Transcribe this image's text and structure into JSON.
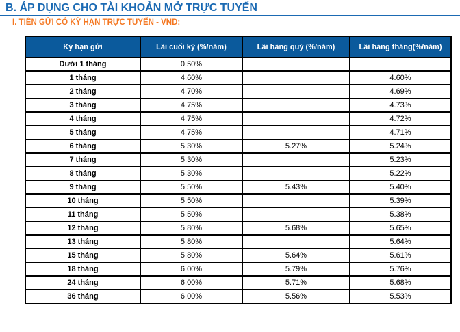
{
  "page": {
    "title": "B. ÁP DỤNG CHO TÀI KHOẢN MỞ TRỰC TUYẾN",
    "subtitle": "I. TIỀN GỬI CÓ KỲ HẠN TRỰC TUYẾN - VND:"
  },
  "colors": {
    "title_blue": "#1B6AB3",
    "subtitle_orange": "#F47721",
    "header_bg": "#0B5A9C",
    "header_text": "#FFFFFF",
    "border_black": "#000000"
  },
  "table": {
    "headers": [
      "Kỳ hạn gửi",
      "Lãi cuối kỳ (%/năm)",
      "Lãi hàng quý (%/năm)",
      "Lãi hàng tháng(%/năm)"
    ],
    "rows": [
      [
        "Dưới 1 tháng",
        "0.50%",
        "",
        ""
      ],
      [
        "1 tháng",
        "4.60%",
        "",
        "4.60%"
      ],
      [
        "2 tháng",
        "4.70%",
        "",
        "4.69%"
      ],
      [
        "3 tháng",
        "4.75%",
        "",
        "4.73%"
      ],
      [
        "4 tháng",
        "4.75%",
        "",
        "4.72%"
      ],
      [
        "5 tháng",
        "4.75%",
        "",
        "4.71%"
      ],
      [
        "6 tháng",
        "5.30%",
        "5.27%",
        "5.24%"
      ],
      [
        "7 tháng",
        "5.30%",
        "",
        "5.23%"
      ],
      [
        "8 tháng",
        "5.30%",
        "",
        "5.22%"
      ],
      [
        "9 tháng",
        "5.50%",
        "5.43%",
        "5.40%"
      ],
      [
        "10 tháng",
        "5.50%",
        "",
        "5.39%"
      ],
      [
        "11 tháng",
        "5.50%",
        "",
        "5.38%"
      ],
      [
        "12 tháng",
        "5.80%",
        "5.68%",
        "5.65%"
      ],
      [
        "13 tháng",
        "5.80%",
        "",
        "5.64%"
      ],
      [
        "15 tháng",
        "5.80%",
        "5.64%",
        "5.61%"
      ],
      [
        "18 tháng",
        "6.00%",
        "5.79%",
        "5.76%"
      ],
      [
        "24 tháng",
        "6.00%",
        "5.71%",
        "5.68%"
      ],
      [
        "36 tháng",
        "6.00%",
        "5.56%",
        "5.53%"
      ]
    ]
  }
}
